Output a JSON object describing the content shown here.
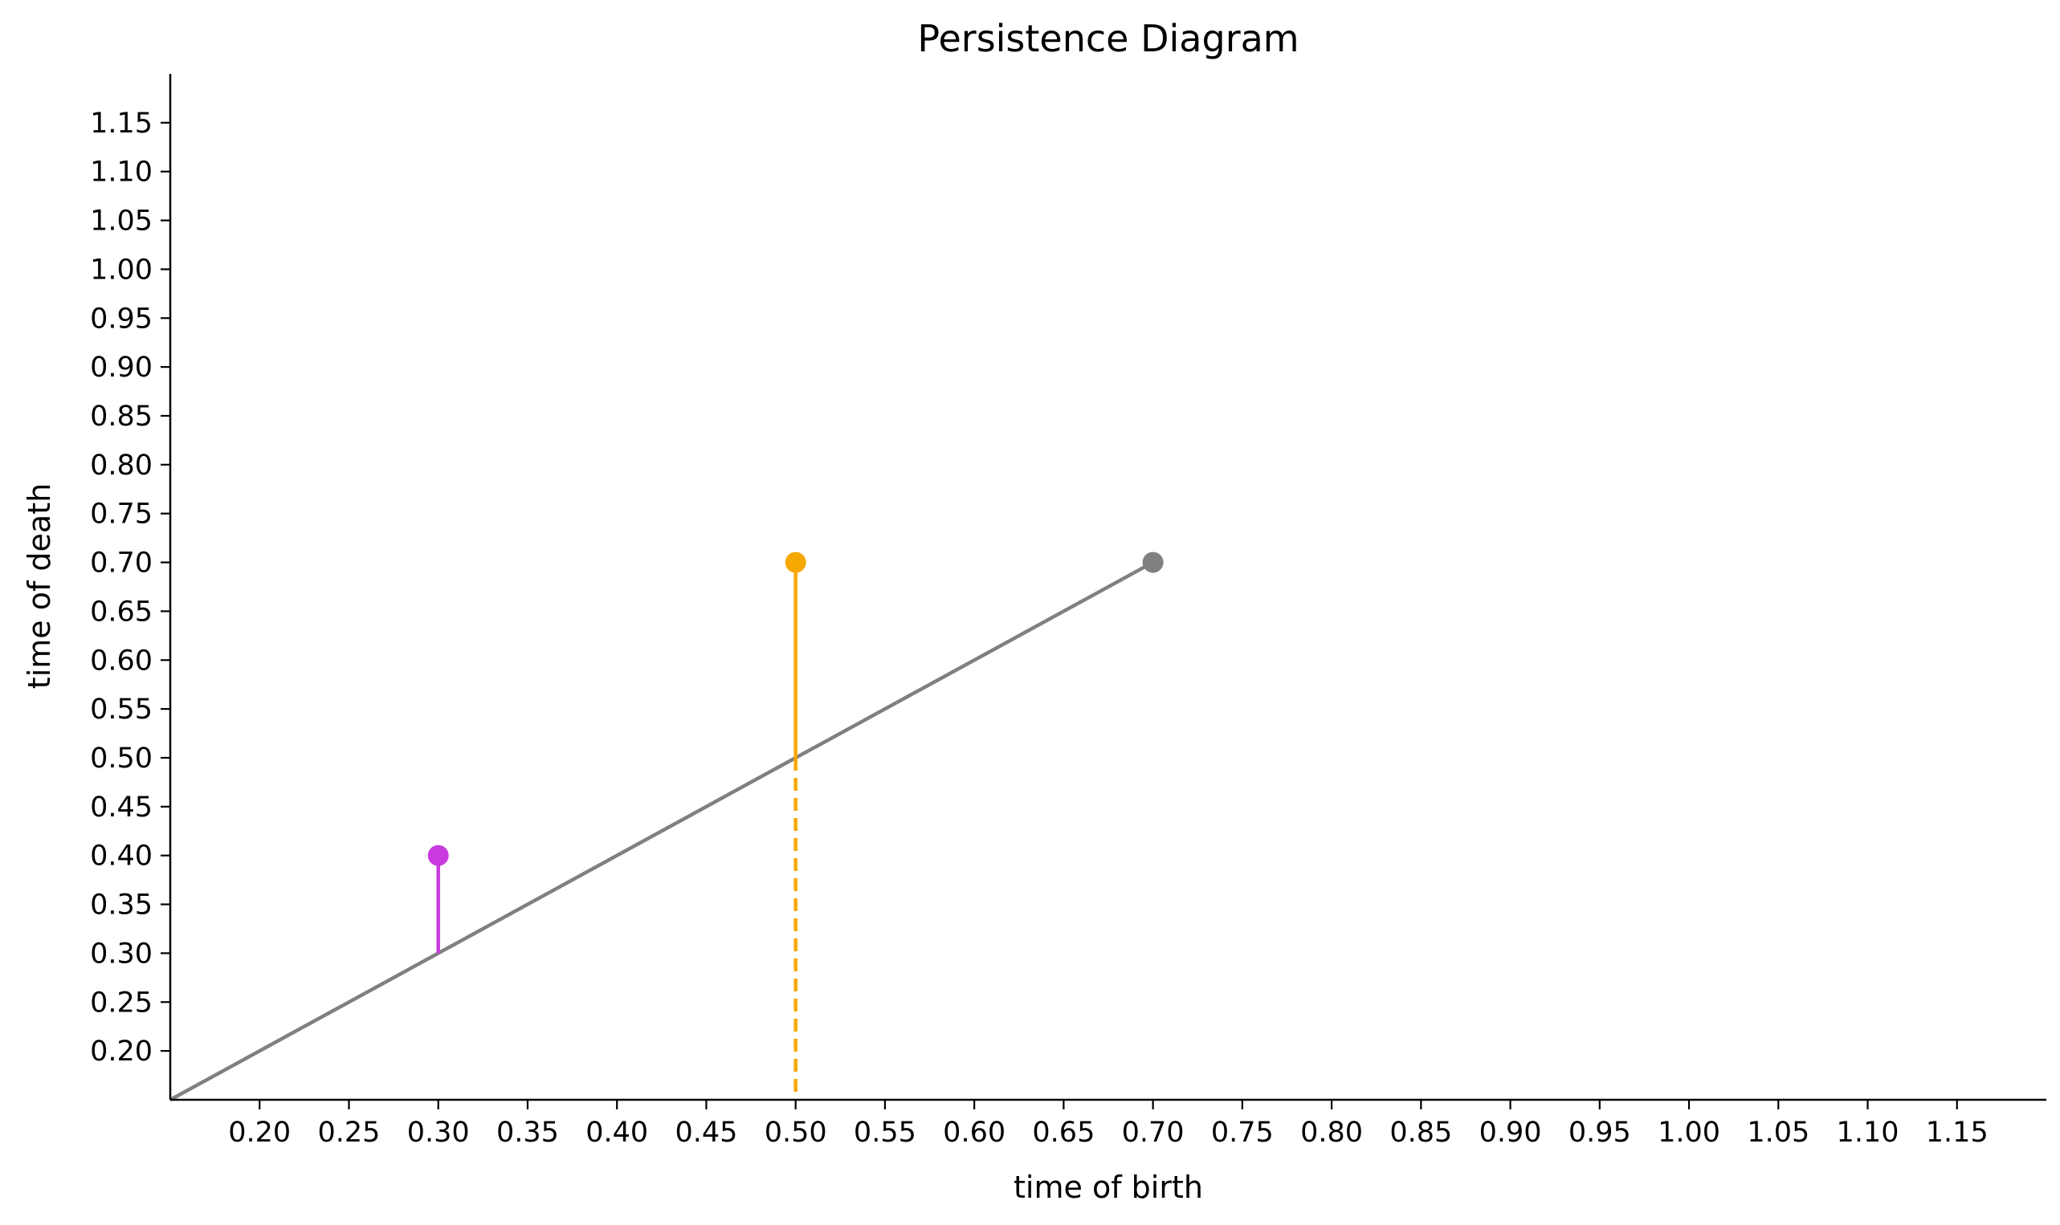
{
  "chart_data": {
    "type": "scatter",
    "title": "Persistence Diagram",
    "xlabel": "time of birth",
    "ylabel": "time of death",
    "xlim": [
      0.15,
      1.2
    ],
    "ylim": [
      0.15,
      1.2
    ],
    "xticks": [
      "0.20",
      "0.25",
      "0.30",
      "0.35",
      "0.40",
      "0.45",
      "0.50",
      "0.55",
      "0.60",
      "0.65",
      "0.70",
      "0.75",
      "0.80",
      "0.85",
      "0.90",
      "0.95",
      "1.00",
      "1.05",
      "1.10",
      "1.15"
    ],
    "yticks": [
      "0.20",
      "0.25",
      "0.30",
      "0.35",
      "0.40",
      "0.45",
      "0.50",
      "0.55",
      "0.60",
      "0.65",
      "0.70",
      "0.75",
      "0.80",
      "0.85",
      "0.90",
      "0.95",
      "1.00",
      "1.05",
      "1.10",
      "1.15"
    ],
    "grid": false,
    "diagonal": {
      "x": [
        0.15,
        0.7
      ],
      "y": [
        0.15,
        0.7
      ],
      "color": "#808080"
    },
    "points": [
      {
        "x": 0.3,
        "y": 0.4,
        "color": "#c83ade",
        "stem": "solid"
      },
      {
        "x": 0.5,
        "y": 0.7,
        "color": "#f5a800",
        "stem": "solid-with-dashed-extension"
      },
      {
        "x": 0.7,
        "y": 0.7,
        "color": "#808080",
        "stem": "none"
      }
    ]
  }
}
